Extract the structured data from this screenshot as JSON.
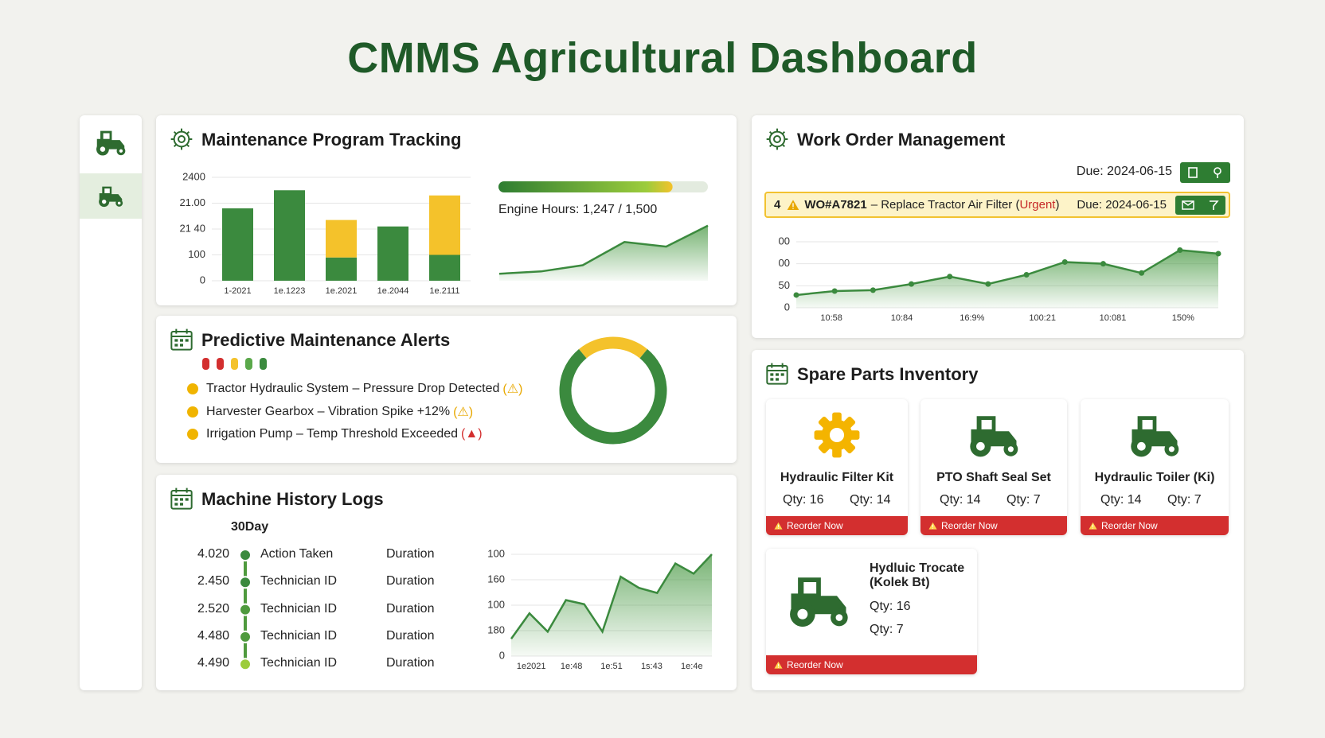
{
  "header": {
    "title": "CMMS Agricultural Dashboard"
  },
  "maintenance_program": {
    "title": "Maintenance Program Tracking",
    "chart": {
      "type": "bar",
      "categories": [
        "1-2021",
        "1e.1223",
        "1e.2021",
        "1e.2044",
        "1e.2111"
      ],
      "series": [
        {
          "color": "#3b8a3e",
          "values": [
            280,
            350,
            90,
            210,
            100
          ]
        },
        {
          "color": "#f4c22b",
          "values": [
            null,
            null,
            145,
            null,
            230
          ]
        }
      ],
      "ylim": [
        0,
        400
      ],
      "yticks": [
        0,
        100,
        {
          "value": 200,
          "label": "21 40"
        },
        {
          "value": 300,
          "label": "21.00"
        },
        {
          "value": 400,
          "label": "2400"
        }
      ],
      "grid": true
    },
    "progress": {
      "label": "Engine Hours: 1,247 / 1,500",
      "value": 1247,
      "max": 1500
    },
    "trend": {
      "type": "area",
      "values": [
        9,
        12,
        20,
        50,
        44,
        71
      ],
      "ylim": [
        0,
        80
      ],
      "color": "#3b8a3e"
    }
  },
  "predictive_alerts": {
    "title": "Predictive Maintenance Alerts",
    "status_colors": [
      "#d32f2f",
      "#d32f2f",
      "#f4c22b",
      "#5aa84a",
      "#3b8a3e"
    ],
    "alerts": [
      {
        "text": "Tractor Hydraulic System – Pressure Drop Detected",
        "flag": "(⚠)",
        "color": "#e8a800"
      },
      {
        "text": "Harvester Gearbox – Vibration Spike +12%",
        "flag": "(⚠)",
        "color": "#e8a800"
      },
      {
        "text": "Irrigation Pump – Temp Threshold Exceeded",
        "flag": "(▲)",
        "color": "#d32f2f"
      }
    ],
    "donut": {
      "type": "pie",
      "values": [
        22,
        78
      ],
      "colors": [
        "#f4c22b",
        "#3b8a3e"
      ]
    }
  },
  "machine_history": {
    "title": "Machine History Logs",
    "period": "30Day",
    "rows": [
      {
        "value": "4.020",
        "action": "Action Taken",
        "duration": "Duration",
        "color": "#3b8a3e"
      },
      {
        "value": "2.450",
        "action": "Technician ID",
        "duration": "Duration",
        "color": "#3b8a3e"
      },
      {
        "value": "2.520",
        "action": "Technician ID",
        "duration": "Duration",
        "color": "#4f9a3e"
      },
      {
        "value": "4.480",
        "action": "Technician ID",
        "duration": "Duration",
        "color": "#4f9a3e"
      },
      {
        "value": "4.490",
        "action": "Technician ID",
        "duration": "Duration",
        "color": "#9ccc3c"
      }
    ],
    "chart": {
      "type": "area",
      "values": [
        17,
        42,
        24,
        55,
        51,
        24,
        78,
        67,
        62,
        91,
        81,
        100
      ],
      "color": "#3b8a3e",
      "ylim": [
        0,
        100
      ],
      "yticks": [
        0,
        {
          "value": 25,
          "label": "180"
        },
        {
          "value": 50,
          "label": "100"
        },
        {
          "value": 75,
          "label": "160"
        },
        100
      ],
      "categories": [
        "1e2021",
        "1e:48",
        "1e:51",
        "1s:43",
        "1e:4e"
      ],
      "grid": true
    }
  },
  "work_orders": {
    "title": "Work Order Management",
    "due": "Due: 2024-06-15",
    "order": {
      "index": 4,
      "id": "WO#A7821",
      "description": "– Replace Tractor Air Filter (",
      "priority": "Urgent",
      "close": ")",
      "due": "Due: 2024-06-15"
    },
    "chart": {
      "type": "area",
      "values": [
        29,
        38,
        40,
        54,
        71,
        54,
        75,
        104,
        100,
        79,
        131,
        123
      ],
      "color": "#3b8a3e",
      "ylim": [
        0,
        150
      ],
      "yticks": [
        0,
        50,
        {
          "value": 100,
          "label": "00"
        },
        {
          "value": 150,
          "label": "00"
        }
      ],
      "categories": [
        "10:58",
        "10:84",
        "16:9%",
        "100:21",
        "10:081",
        "150%"
      ],
      "grid": true
    }
  },
  "spare_parts": {
    "title": "Spare Parts Inventory",
    "items": [
      {
        "name": "Hydraulic Filter Kit",
        "icon": "gear",
        "qty": [
          "Qty: 16",
          "Qty: 14"
        ],
        "action": "Reorder Now"
      },
      {
        "name": "PTO Shaft Seal Set",
        "icon": "tractor",
        "qty": [
          "Qty: 14",
          "Qty: 7"
        ],
        "action": "Reorder Now"
      },
      {
        "name": "Hydraulic Toiler (Ki)",
        "icon": "tractor",
        "qty": [
          "Qty: 14",
          "Qty: 7"
        ],
        "action": "Reorder Now"
      },
      {
        "name": "Hydluic Trocate (Kolek Bt)",
        "icon": "tractor",
        "qty": [
          "Qty: 16",
          "Qty: 7"
        ],
        "action": "Reorder Now"
      }
    ]
  }
}
